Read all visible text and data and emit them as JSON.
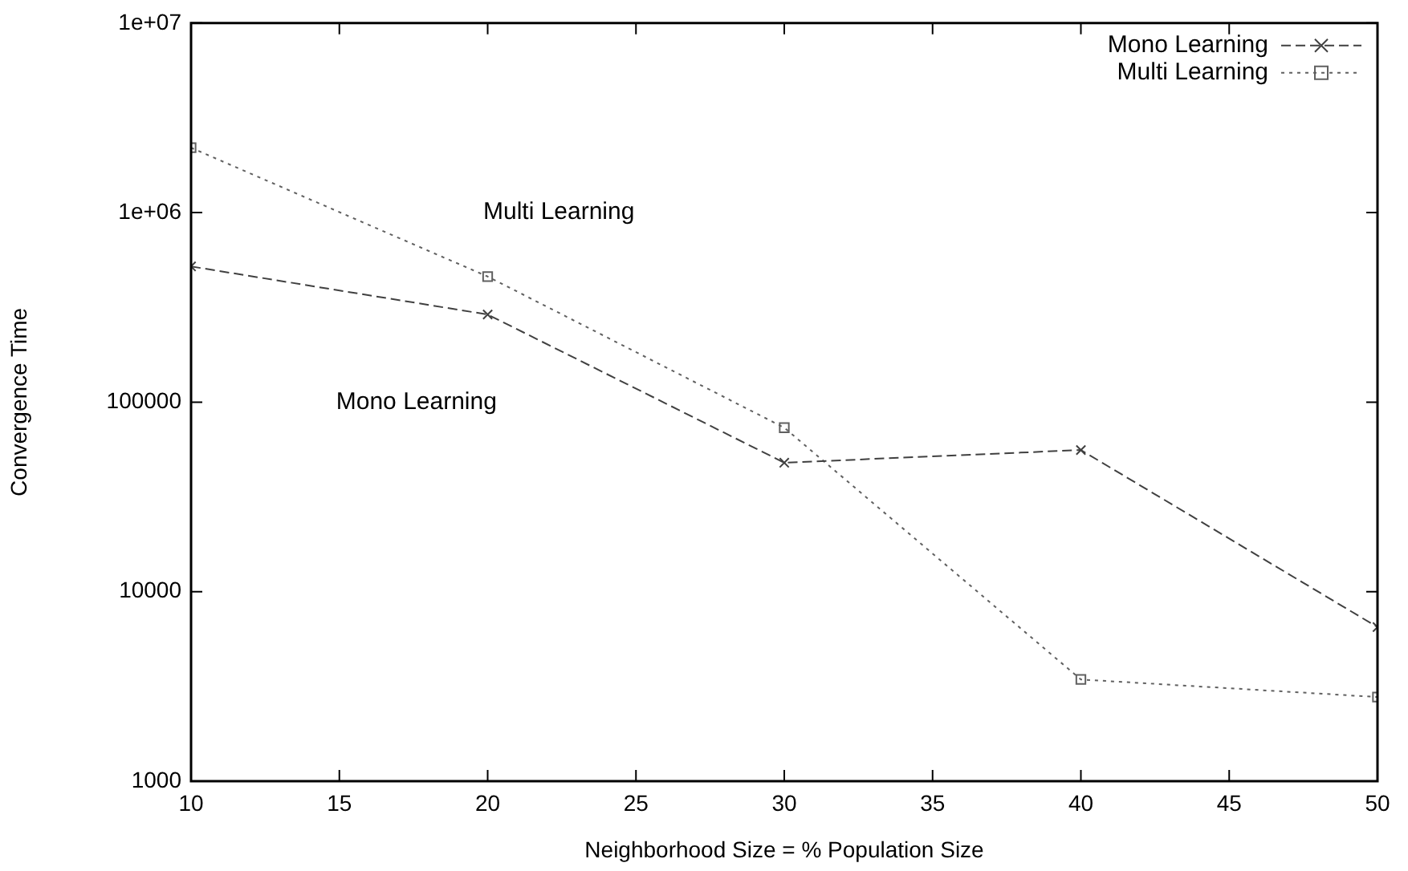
{
  "chart_data": {
    "type": "line",
    "xlabel": "Neighborhood Size = % Population Size",
    "ylabel": "Convergence Time",
    "x": [
      10,
      20,
      30,
      40,
      50
    ],
    "series": [
      {
        "name": "Mono Learning",
        "color": "#404040",
        "marker": "cross",
        "line_style": "dashed",
        "values": [
          520000,
          290000,
          47900,
          55900,
          6500
        ]
      },
      {
        "name": "Multi Learning",
        "color": "#606060",
        "marker": "square",
        "line_style": "dotted",
        "values": [
          2200000,
          460000,
          73300,
          3440,
          2780
        ]
      }
    ],
    "log": "y",
    "xlim": [
      10,
      50
    ],
    "xticks": [
      10,
      15,
      20,
      25,
      30,
      35,
      40,
      45,
      50
    ],
    "ylim": [
      1000,
      10000000
    ],
    "yticks": [
      1000,
      10000,
      100000,
      {
        "value": 1000000,
        "label": "1e+06"
      },
      {
        "value": 10000000,
        "label": "1e+07"
      }
    ],
    "legend": "top right",
    "annotations": [
      "Multi Learning",
      "Mono Learning"
    ]
  }
}
